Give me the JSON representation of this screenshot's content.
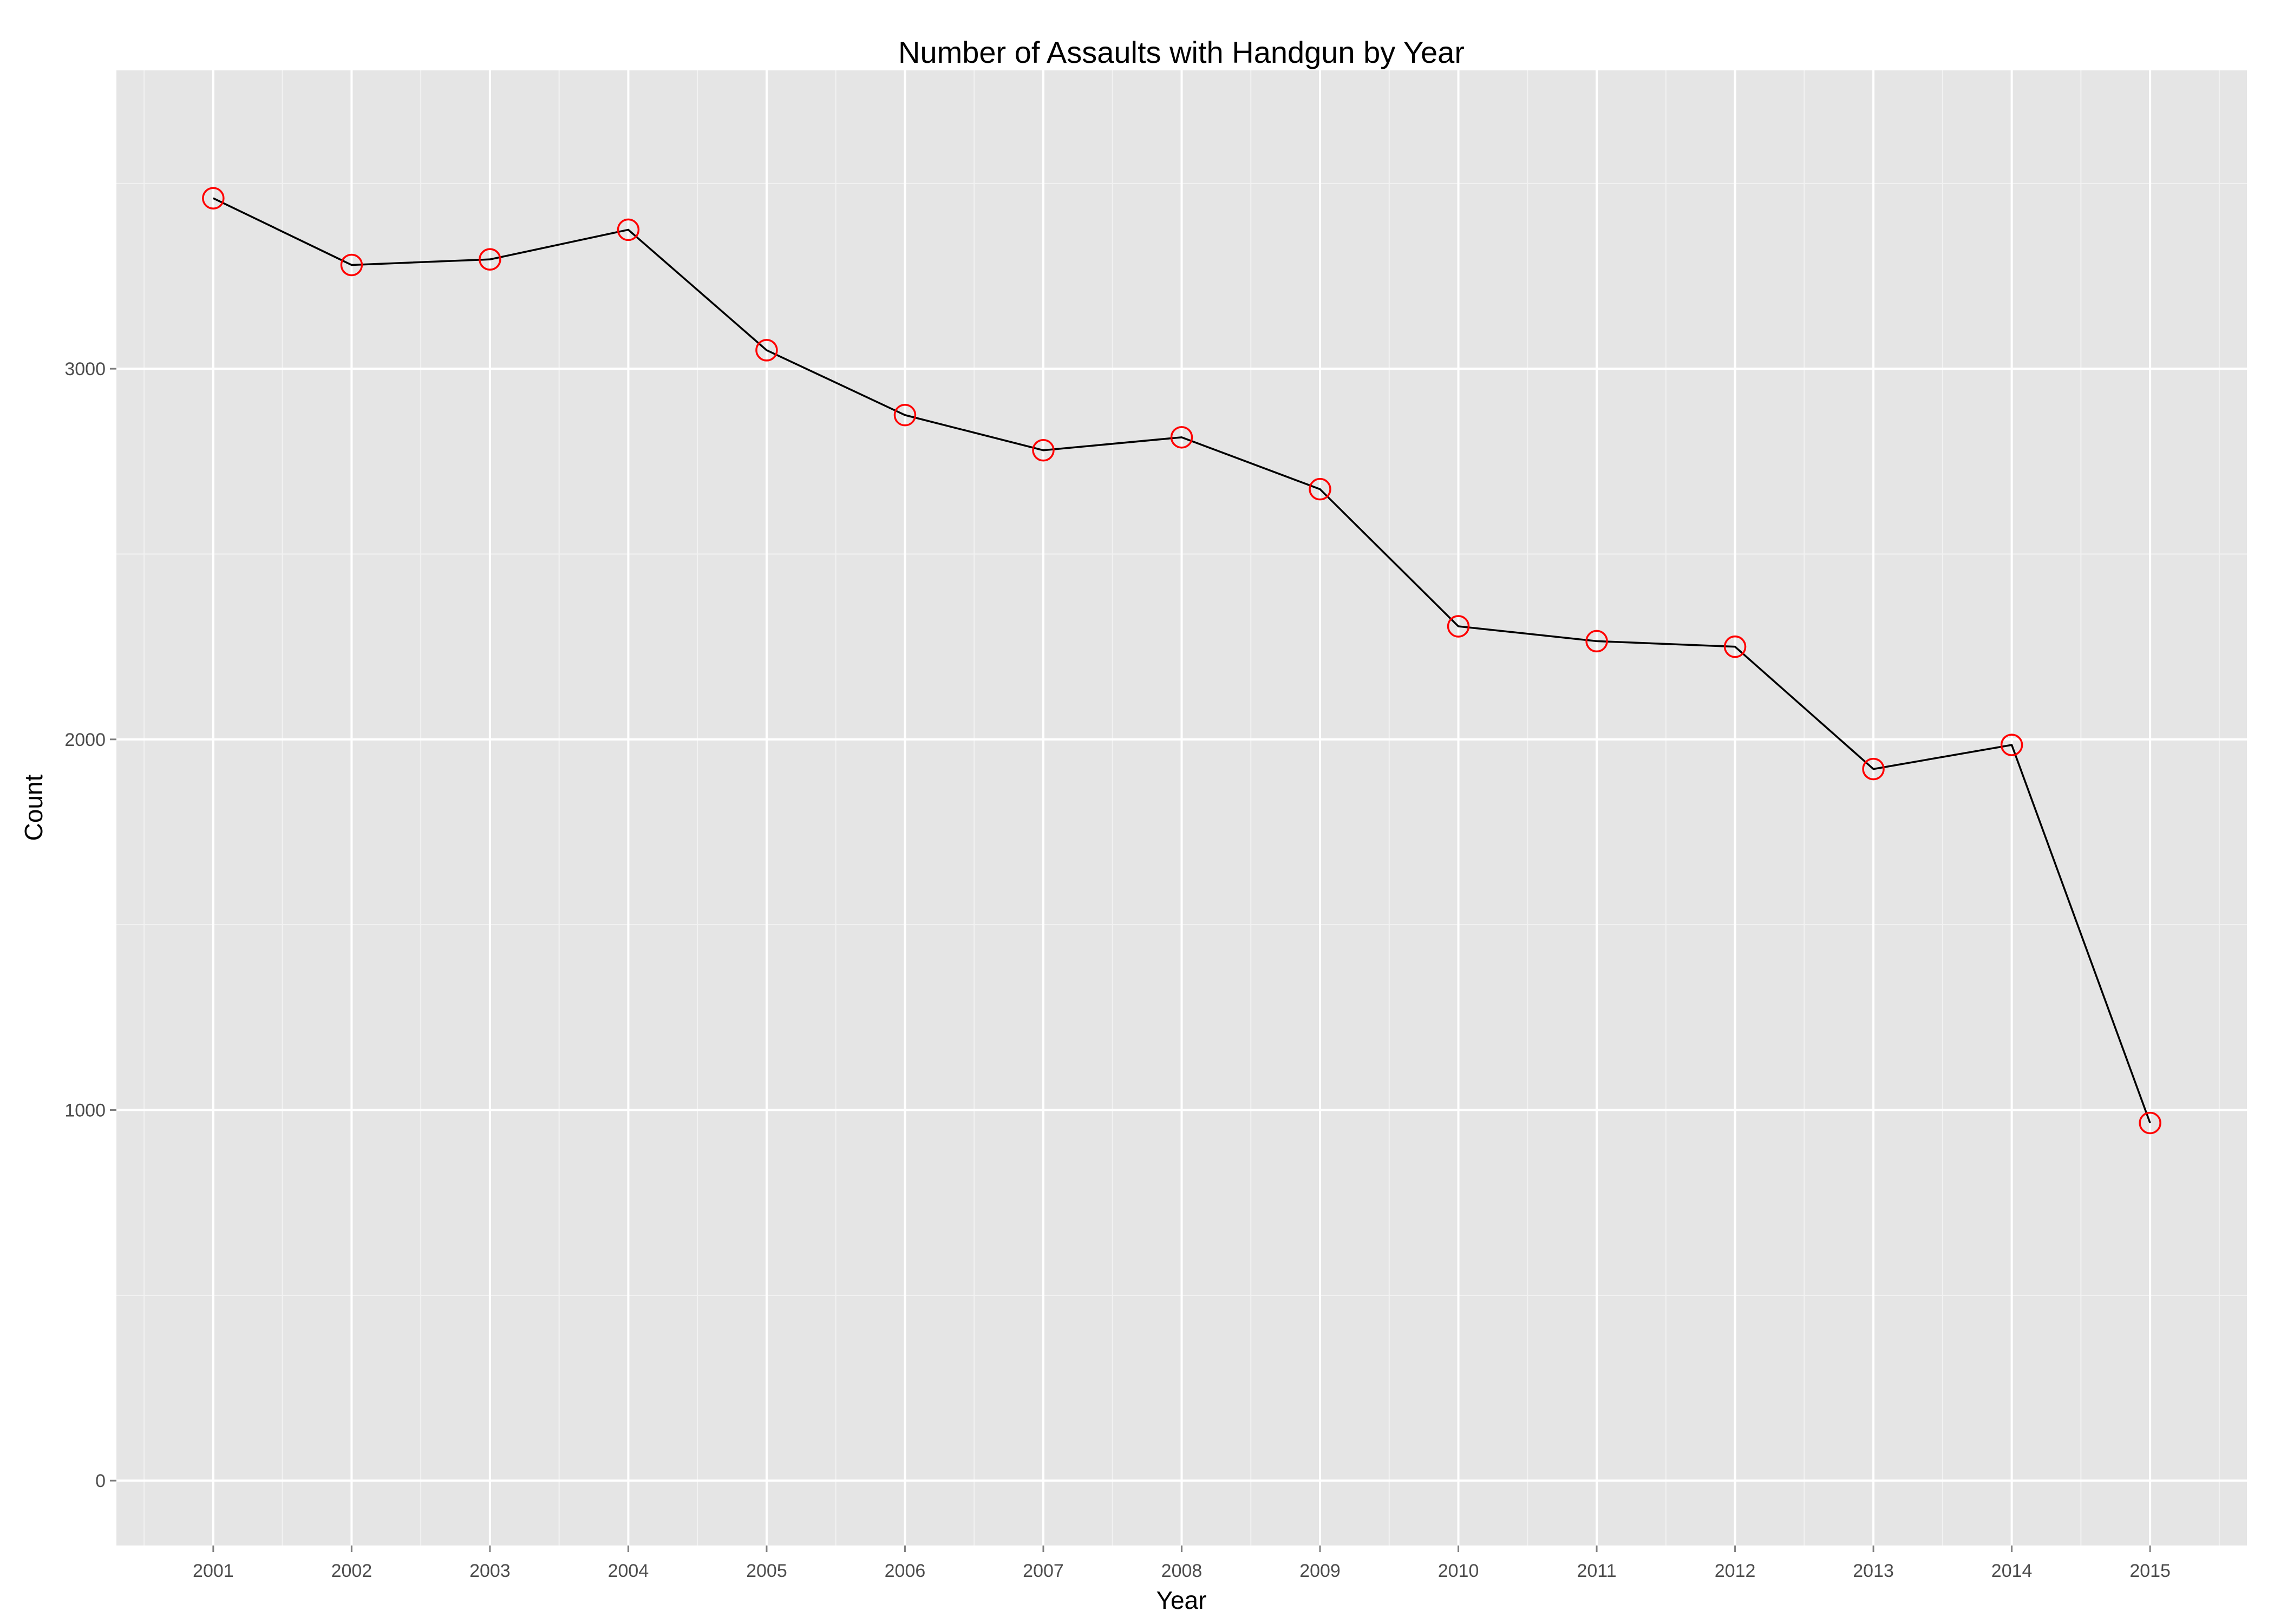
{
  "chart_data": {
    "type": "line",
    "title": "Number of Assaults with Handgun by Year",
    "xlabel": "Year",
    "ylabel": "Count",
    "x": [
      2001,
      2002,
      2003,
      2004,
      2005,
      2006,
      2007,
      2008,
      2009,
      2010,
      2011,
      2012,
      2013,
      2014,
      2015
    ],
    "series": [
      {
        "values": [
          3460,
          3280,
          3295,
          3375,
          3050,
          2875,
          2780,
          2815,
          2675,
          2305,
          2265,
          2250,
          1920,
          1985,
          965
        ]
      }
    ],
    "xlim": [
      2000.3,
      2015.7
    ],
    "ylim": [
      -175,
      3805
    ],
    "y_ticks": [
      0,
      1000,
      2000,
      3000
    ],
    "x_ticks": [
      "2001",
      "2002",
      "2003",
      "2004",
      "2005",
      "2006",
      "2007",
      "2008",
      "2009",
      "2010",
      "2011",
      "2012",
      "2013",
      "2014",
      "2015"
    ],
    "grid": true,
    "legend": "none",
    "colors": {
      "panel_background": "#e5e5e5",
      "grid_major": "#ffffff",
      "grid_minor": "#f2f2f2",
      "line": "#000000",
      "point": "#ff0000"
    }
  }
}
